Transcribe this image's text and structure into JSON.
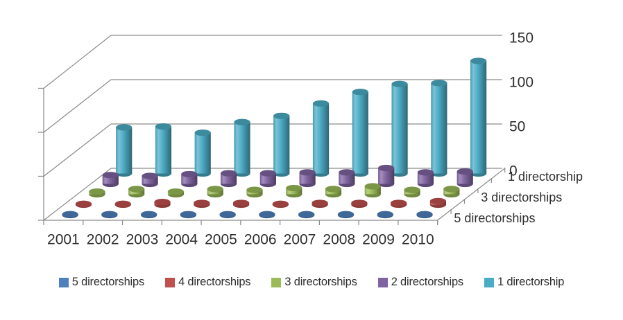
{
  "chart_data": {
    "type": "bar",
    "style": "3d-cylinder",
    "title": "",
    "categories": [
      "2001",
      "2002",
      "2003",
      "2004",
      "2005",
      "2006",
      "2007",
      "2008",
      "2009",
      "2010"
    ],
    "series": [
      {
        "name": "5 directorships",
        "color": "#4F81BD",
        "values": [
          1,
          1,
          1,
          1,
          1,
          1,
          1,
          1,
          1,
          1
        ]
      },
      {
        "name": "4 directorships",
        "color": "#C0504D",
        "values": [
          1,
          1,
          3,
          2,
          2,
          1,
          2,
          2,
          2,
          4
        ]
      },
      {
        "name": "3 directorships",
        "color": "#9BBB59",
        "values": [
          3,
          6,
          3,
          6,
          5,
          7,
          6,
          9,
          5,
          6
        ]
      },
      {
        "name": "2 directorships",
        "color": "#8064A2",
        "values": [
          10,
          9,
          11,
          12,
          12,
          13,
          13,
          18,
          13,
          14
        ]
      },
      {
        "name": "1 directorship",
        "color": "#4BACC6",
        "values": [
          52,
          53,
          46,
          58,
          65,
          79,
          92,
          101,
          102,
          127
        ]
      }
    ],
    "value_axis": {
      "min": 0,
      "max": 150,
      "ticks": [
        0,
        50,
        100,
        150
      ],
      "label_side": "right"
    },
    "depth_axis_labels": [
      "5 directorships",
      "3 directorships",
      "1 directorship"
    ],
    "legend": {
      "position": "bottom",
      "entries": [
        "5 directorships",
        "4 directorships",
        "3 directorships",
        "2 directorships",
        "1 directorship"
      ]
    },
    "gridlines": true,
    "colors": {
      "grid": "#8c8c8c",
      "text": "#2f2f2f",
      "background": "#ffffff"
    }
  }
}
